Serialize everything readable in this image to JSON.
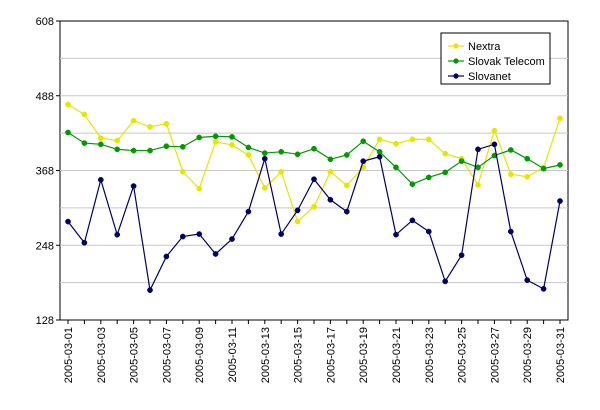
{
  "chart_data": {
    "type": "line",
    "title": "",
    "xlabel": "",
    "ylabel": "",
    "ylim": [
      128,
      608
    ],
    "yticks": [
      128,
      248,
      368,
      488,
      608
    ],
    "grid": true,
    "legend_position": "top-right",
    "x": [
      "2005-03-01",
      "2005-03-02",
      "2005-03-03",
      "2005-03-04",
      "2005-03-05",
      "2005-03-06",
      "2005-03-07",
      "2005-03-08",
      "2005-03-09",
      "2005-03-10",
      "2005-03-11",
      "2005-03-12",
      "2005-03-13",
      "2005-03-14",
      "2005-03-15",
      "2005-03-16",
      "2005-03-17",
      "2005-03-18",
      "2005-03-19",
      "2005-03-20",
      "2005-03-21",
      "2005-03-22",
      "2005-03-23",
      "2005-03-24",
      "2005-03-25",
      "2005-03-26",
      "2005-03-27",
      "2005-03-28",
      "2005-03-29",
      "2005-03-30",
      "2005-03-31"
    ],
    "xtick_labels": [
      "2005-03-01",
      "2005-03-03",
      "2005-03-05",
      "2005-03-07",
      "2005-03-09",
      "2005-03-11",
      "2005-03-13",
      "2005-03-15",
      "2005-03-17",
      "2005-03-19",
      "2005-03-21",
      "2005-03-23",
      "2005-03-25",
      "2005-03-27",
      "2005-03-29",
      "2005-03-31"
    ],
    "series": [
      {
        "name": "Nextra",
        "color": "#e6e600",
        "values": [
          474,
          458,
          420,
          416,
          448,
          438,
          443,
          366,
          339,
          414,
          409,
          393,
          340,
          366,
          286,
          310,
          366,
          344,
          373,
          418,
          411,
          418,
          418,
          395,
          387,
          345,
          432,
          362,
          358,
          373,
          452
        ]
      },
      {
        "name": "Slovak Telecom",
        "color": "#009900",
        "values": [
          429,
          412,
          410,
          402,
          400,
          400,
          407,
          406,
          421,
          423,
          422,
          405,
          396,
          398,
          394,
          403,
          386,
          393,
          415,
          398,
          373,
          346,
          357,
          365,
          383,
          373,
          392,
          401,
          387,
          371,
          377
        ]
      },
      {
        "name": "Slovanet",
        "color": "#000066",
        "values": [
          286,
          252,
          353,
          265,
          343,
          176,
          230,
          262,
          266,
          234,
          258,
          302,
          387,
          266,
          304,
          354,
          321,
          302,
          383,
          390,
          265,
          288,
          270,
          190,
          232,
          402,
          410,
          270,
          192,
          178,
          319
        ]
      }
    ]
  }
}
